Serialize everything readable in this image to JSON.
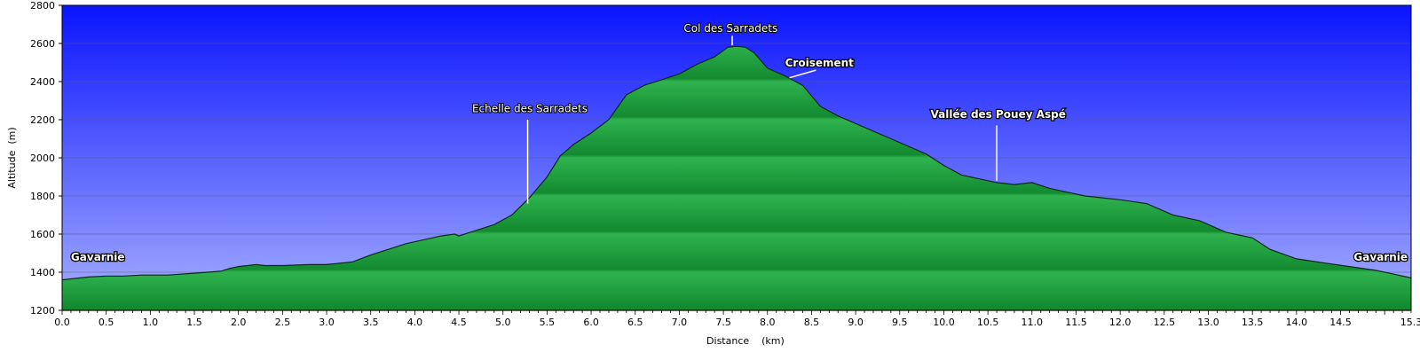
{
  "chart_data": {
    "type": "area",
    "xlabel": "Distance    (km)",
    "ylabel": "Altitude  (m)",
    "xlim": [
      0.0,
      15.3
    ],
    "ylim": [
      1200,
      2800
    ],
    "x_ticks": [
      0.0,
      0.5,
      1.0,
      1.5,
      2.0,
      2.5,
      3.0,
      3.5,
      4.0,
      4.5,
      5.0,
      5.5,
      6.0,
      6.5,
      7.0,
      7.5,
      8.0,
      8.5,
      9.0,
      9.5,
      10.0,
      10.5,
      11.0,
      11.5,
      12.0,
      12.5,
      13.0,
      13.5,
      14.0,
      14.5,
      15.3
    ],
    "x_tick_labels": [
      "0.0",
      "0.5",
      "1.0",
      "1.5",
      "2.0",
      "2.5",
      "3.0",
      "3.5",
      "4.0",
      "4.5",
      "5.0",
      "5.5",
      "6.0",
      "6.5",
      "7.0",
      "7.5",
      "8.0",
      "8.5",
      "9.0",
      "9.5",
      "10.0",
      "10.5",
      "11.0",
      "11.5",
      "12.0",
      "12.5",
      "13.0",
      "13.5",
      "14.0",
      "14.5",
      "15.3"
    ],
    "y_ticks": [
      1200,
      1400,
      1600,
      1800,
      2000,
      2200,
      2400,
      2600,
      2800
    ],
    "y_tick_labels": [
      "1200",
      "1400",
      "1600",
      "1800",
      "2000",
      "2200",
      "2400",
      "2600",
      "2800"
    ],
    "grid": true,
    "colors": {
      "sky_top": "#0a14ff",
      "sky_bottom": "#a8b0ff",
      "fill_light": "#2fb34f",
      "fill_dark": "#138a30",
      "outline": "#0d2a14"
    },
    "series": [
      {
        "x": [
          0.0,
          0.1,
          0.3,
          0.5,
          0.7,
          0.9,
          1.0,
          1.2,
          1.5,
          1.8,
          1.9,
          2.0,
          2.2,
          2.3,
          2.5,
          2.8,
          3.0,
          3.2,
          3.3,
          3.5,
          3.7,
          3.9,
          4.1,
          4.3,
          4.45,
          4.5,
          4.7,
          4.9,
          5.1,
          5.3,
          5.5,
          5.65,
          5.8,
          6.0,
          6.2,
          6.4,
          6.6,
          6.8,
          7.0,
          7.2,
          7.4,
          7.55,
          7.65,
          7.75,
          7.85,
          8.0,
          8.2,
          8.4,
          8.6,
          8.8,
          9.0,
          9.2,
          9.4,
          9.6,
          9.8,
          10.0,
          10.2,
          10.4,
          10.6,
          10.8,
          11.0,
          11.2,
          11.4,
          11.6,
          11.8,
          12.0,
          12.3,
          12.6,
          12.9,
          13.2,
          13.5,
          13.7,
          14.0,
          14.3,
          14.6,
          14.9,
          15.1,
          15.3
        ],
        "y": [
          1360,
          1365,
          1375,
          1380,
          1380,
          1385,
          1385,
          1385,
          1395,
          1405,
          1420,
          1430,
          1440,
          1435,
          1435,
          1440,
          1440,
          1450,
          1455,
          1490,
          1520,
          1550,
          1570,
          1590,
          1600,
          1590,
          1620,
          1650,
          1700,
          1790,
          1900,
          2010,
          2070,
          2130,
          2200,
          2330,
          2380,
          2410,
          2440,
          2490,
          2530,
          2580,
          2585,
          2580,
          2550,
          2470,
          2430,
          2380,
          2270,
          2220,
          2180,
          2140,
          2100,
          2060,
          2020,
          1960,
          1910,
          1890,
          1870,
          1860,
          1870,
          1840,
          1820,
          1800,
          1790,
          1780,
          1760,
          1700,
          1670,
          1610,
          1580,
          1520,
          1470,
          1450,
          1430,
          1410,
          1390,
          1370
        ]
      }
    ],
    "annotations": [
      {
        "text": "Gavarnie",
        "x": 0.1,
        "y": 1460,
        "style": "bold"
      },
      {
        "text": "Echelle des Sarradets",
        "x": 4.65,
        "y": 2240,
        "style": "normal",
        "line_from": [
          5.28,
          2200
        ],
        "line_to": [
          5.28,
          1760
        ]
      },
      {
        "text": "Col des Sarradets",
        "x": 7.05,
        "y": 2660,
        "style": "normal",
        "line_from": [
          7.6,
          2640
        ],
        "line_to": [
          7.6,
          2590
        ]
      },
      {
        "text": "Croisement",
        "x": 8.2,
        "y": 2480,
        "style": "bold",
        "line_from": [
          8.55,
          2460
        ],
        "line_to": [
          8.25,
          2420
        ]
      },
      {
        "text": "Vallée des Pouey Aspé",
        "x": 9.85,
        "y": 2210,
        "style": "bold",
        "line_from": [
          10.6,
          2170
        ],
        "line_to": [
          10.6,
          1880
        ]
      },
      {
        "text": "Gavarnie",
        "x": 14.65,
        "y": 1460,
        "style": "bold"
      }
    ]
  }
}
